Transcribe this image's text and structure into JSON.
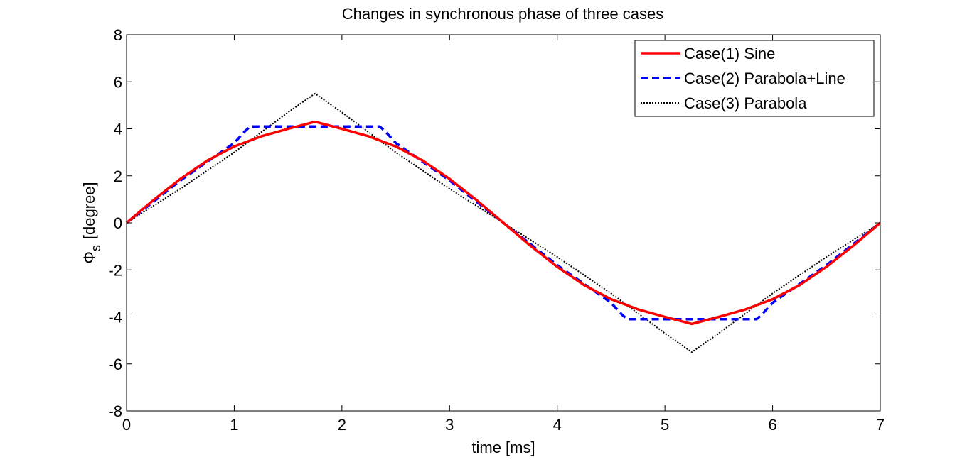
{
  "chart_data": {
    "type": "line",
    "title": "Changes in synchronous phase of three cases",
    "xlabel": "time [ms]",
    "ylabel_symbol": "Φ",
    "ylabel_subscript": "s",
    "ylabel_unit": "[degree]",
    "xlim": [
      0,
      7
    ],
    "ylim": [
      -8,
      8
    ],
    "xticks": [
      0,
      1,
      2,
      3,
      4,
      5,
      6,
      7
    ],
    "yticks": [
      -8,
      -6,
      -4,
      -2,
      0,
      2,
      4,
      6,
      8
    ],
    "grid": false,
    "legend_position": "top-right",
    "series": [
      {
        "name": "Case(1) Sine",
        "color": "#ff0000",
        "style": "solid",
        "x": [
          0,
          0.25,
          0.5,
          0.75,
          1.0,
          1.25,
          1.5,
          1.75,
          2.0,
          2.25,
          2.5,
          2.75,
          3.0,
          3.25,
          3.5,
          3.75,
          4.0,
          4.25,
          4.5,
          4.75,
          5.0,
          5.25,
          5.5,
          5.75,
          6.0,
          6.25,
          6.5,
          6.75,
          7.0
        ],
        "y": [
          0,
          0.97,
          1.87,
          2.65,
          3.25,
          3.68,
          4.0,
          4.3,
          4.0,
          3.68,
          3.25,
          2.65,
          1.87,
          0.97,
          0,
          -0.97,
          -1.87,
          -2.65,
          -3.25,
          -3.68,
          -4.0,
          -4.3,
          -4.0,
          -3.68,
          -3.25,
          -2.65,
          -1.87,
          -0.97,
          0
        ]
      },
      {
        "name": "Case(2) Parabola+Line",
        "color": "#0000ff",
        "style": "dashed",
        "x": [
          0,
          0.25,
          0.5,
          0.75,
          1.0,
          1.1,
          1.15,
          1.75,
          2.35,
          2.4,
          2.5,
          2.75,
          3.0,
          3.25,
          3.5,
          3.75,
          4.0,
          4.25,
          4.5,
          4.6,
          4.65,
          5.25,
          5.85,
          5.9,
          6.0,
          6.25,
          6.5,
          6.75,
          7.0
        ],
        "y": [
          0,
          0.9,
          1.8,
          2.6,
          3.4,
          3.9,
          4.1,
          4.1,
          4.1,
          3.9,
          3.4,
          2.6,
          1.8,
          0.9,
          0,
          -0.9,
          -1.8,
          -2.6,
          -3.4,
          -3.9,
          -4.1,
          -4.1,
          -4.1,
          -3.9,
          -3.4,
          -2.6,
          -1.8,
          -0.9,
          0
        ]
      },
      {
        "name": "Case(3) Parabola",
        "color": "#000000",
        "style": "dotted",
        "x": [
          0,
          0.5,
          1.0,
          1.5,
          1.75,
          2.0,
          2.5,
          3.0,
          3.5,
          4.0,
          4.5,
          5.0,
          5.25,
          5.5,
          6.0,
          6.5,
          7.0
        ],
        "y": [
          0,
          1.45,
          3.0,
          4.7,
          5.5,
          4.7,
          3.0,
          1.45,
          0,
          -1.45,
          -3.0,
          -4.7,
          -5.5,
          -4.7,
          -3.0,
          -1.45,
          0
        ]
      }
    ]
  }
}
